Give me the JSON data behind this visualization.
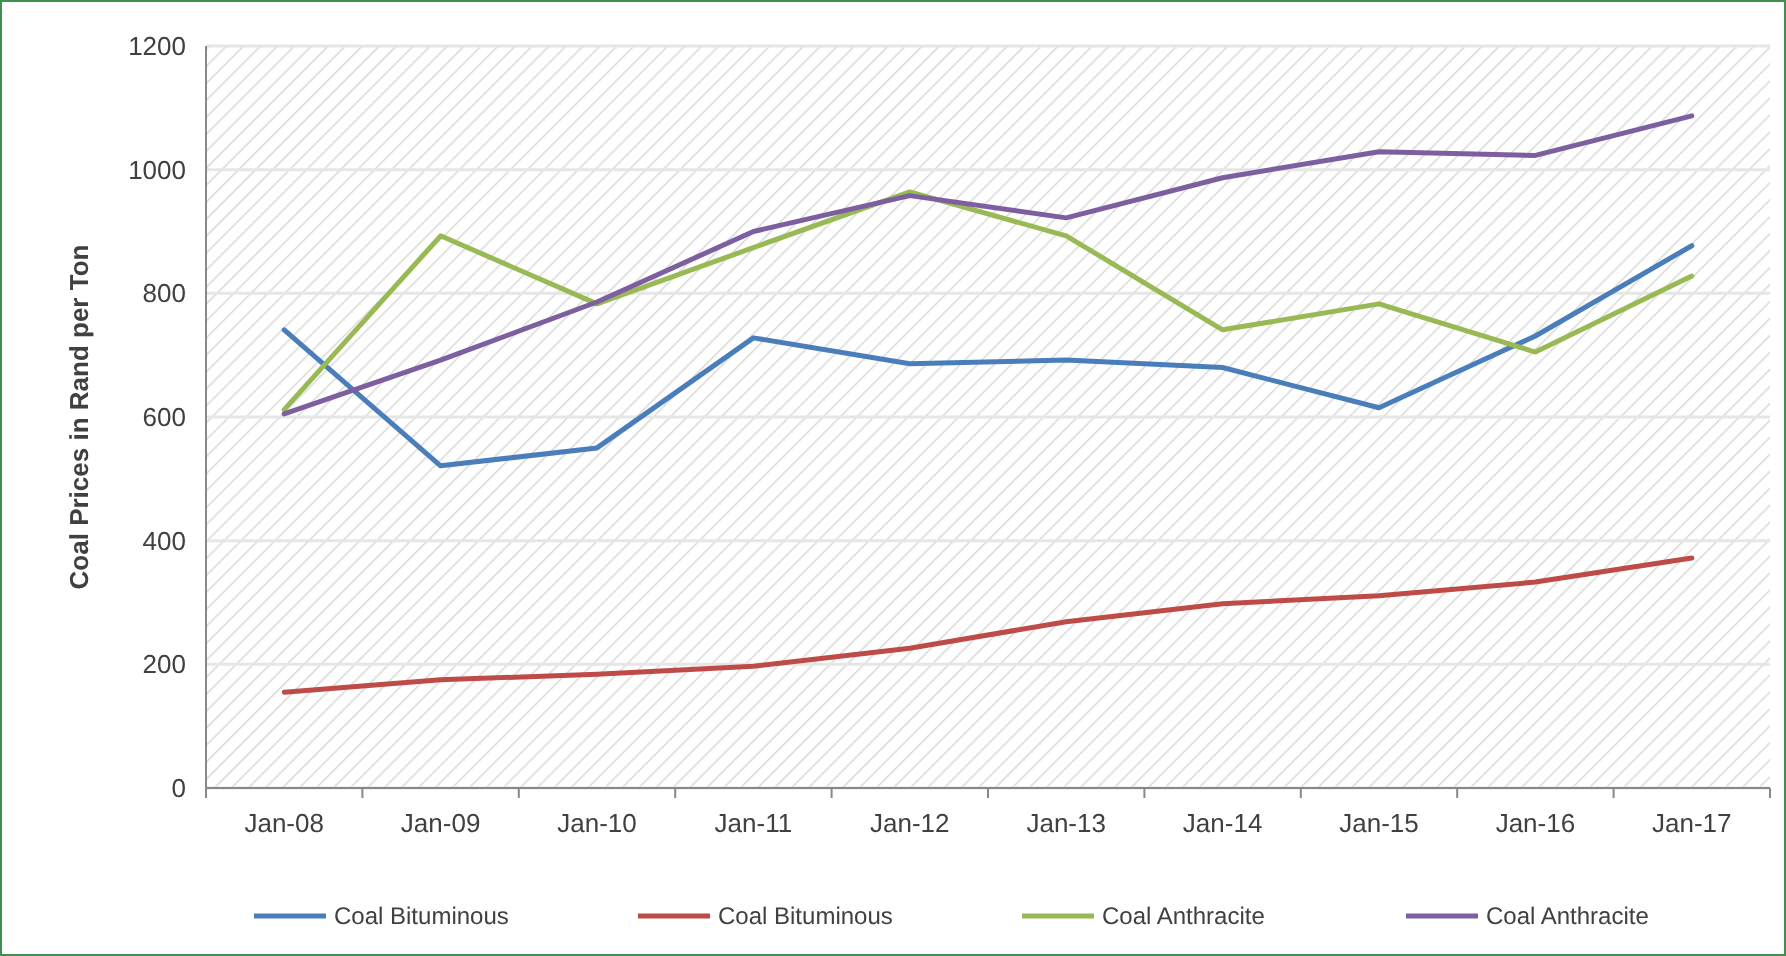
{
  "chart_data": {
    "type": "line",
    "ylabel": "Coal Prices in Rand per Ton",
    "categories": [
      "Jan-08",
      "Jan-09",
      "Jan-10",
      "Jan-11",
      "Jan-12",
      "Jan-13",
      "Jan-14",
      "Jan-15",
      "Jan-16",
      "Jan-17"
    ],
    "series": [
      {
        "name": "Coal Bituminous",
        "color": "#4a7ebb",
        "values": [
          741,
          521,
          550,
          728,
          686,
          692,
          680,
          615,
          731,
          877
        ]
      },
      {
        "name": "Coal Bituminous",
        "color": "#be4b48",
        "values": [
          155,
          175,
          184,
          197,
          226,
          269,
          298,
          311,
          333,
          372
        ]
      },
      {
        "name": "Coal Anthracite",
        "color": "#98b954",
        "values": [
          612,
          893,
          783,
          874,
          964,
          893,
          741,
          783,
          705,
          828
        ]
      },
      {
        "name": "Coal Anthracite",
        "color": "#7d5fa0",
        "values": [
          605,
          692,
          786,
          900,
          958,
          922,
          987,
          1029,
          1023,
          1087
        ]
      }
    ],
    "ylim": [
      0,
      1200
    ],
    "yticks": [
      0,
      200,
      400,
      600,
      800,
      1000,
      1200
    ],
    "grid": "y",
    "legend": "bottom",
    "marker": "none",
    "line_style": "solid"
  }
}
